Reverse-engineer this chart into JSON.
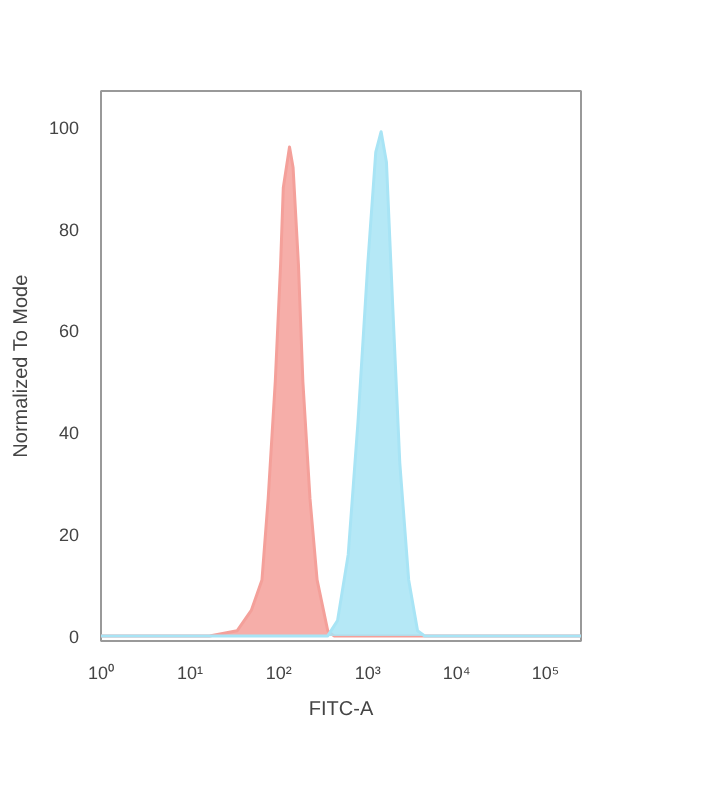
{
  "chart_data": {
    "type": "area",
    "xlabel": "FITC-A",
    "ylabel": "Normalized To Mode",
    "log": "x",
    "grid": false,
    "xlim": [
      1,
      250000
    ],
    "ylim": [
      -1,
      107
    ],
    "xticks": [
      {
        "value": 1,
        "label": "10⁰"
      },
      {
        "value": 10,
        "label": "10¹"
      },
      {
        "value": 100,
        "label": "10²"
      },
      {
        "value": 1000,
        "label": "10³"
      },
      {
        "value": 10000,
        "label": "10⁴"
      },
      {
        "value": 100000,
        "label": "10⁵"
      }
    ],
    "yticks": [
      0,
      20,
      40,
      60,
      80,
      100
    ],
    "series": [
      {
        "color": "#f4a09a",
        "x": [
          1,
          16.6,
          33.9,
          49,
          64.6,
          75.9,
          91.2,
          104.7,
          112.2,
          131.8,
          144.5,
          166,
          186.2,
          223.9,
          269.2,
          354.8,
          416.9,
          250000
        ],
        "values": [
          0,
          0,
          1,
          5,
          11,
          27,
          50,
          73,
          88,
          96,
          92,
          73,
          50,
          27,
          11,
          1,
          0,
          0
        ]
      },
      {
        "color": "#a8e4f5",
        "x": [
          1,
          355,
          457,
          603,
          776,
          1000,
          1230,
          1413,
          1622,
          1905,
          2291,
          2884,
          3631,
          4365,
          250000
        ],
        "values": [
          0,
          0,
          3,
          16,
          42,
          73,
          95,
          99,
          93,
          65,
          34,
          11,
          1,
          0,
          0
        ]
      }
    ]
  }
}
